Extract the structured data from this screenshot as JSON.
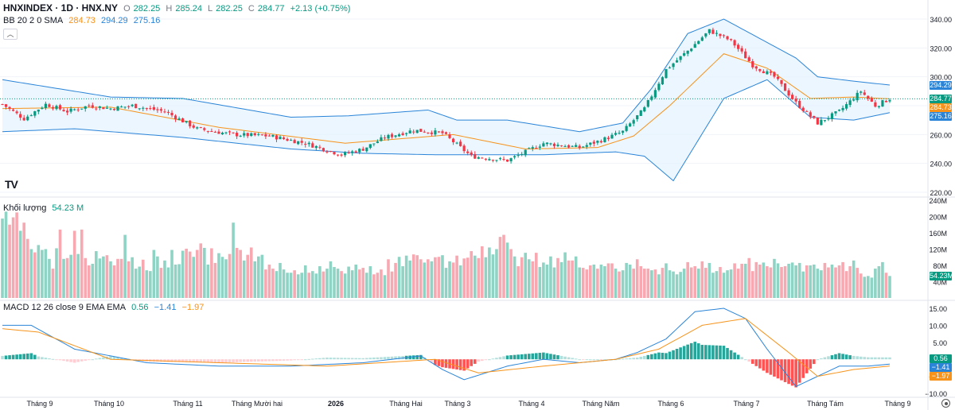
{
  "header": {
    "symbol": "HNXINDEX · 1D · HNX.NY",
    "o_label": "O",
    "o_value": "282.25",
    "h_label": "H",
    "h_value": "285.24",
    "l_label": "L",
    "l_value": "282.25",
    "c_label": "C",
    "c_value": "284.77",
    "change": "+2.13 (+0.75%)"
  },
  "bb_legend": {
    "label": "BB 20 2 0 SMA",
    "mid": "284.73",
    "upper": "294.29",
    "lower": "275.16"
  },
  "volume_legend": {
    "label": "Khối lượng",
    "value": "54.23 M"
  },
  "macd_legend": {
    "label": "MACD 12 26 close 9 EMA EMA",
    "hist": "0.56",
    "macd": "−1.41",
    "signal": "−1.97"
  },
  "logo": "TV",
  "badges": {
    "bb_upper": "294.29",
    "close": "284.77",
    "bb_mid": "284.73",
    "bb_lower": "275.16",
    "volume": "54.23M",
    "macd_hist": "0.56",
    "macd": "−1.41",
    "signal": "−1.97"
  },
  "price_axis_ticks": [
    "340.00",
    "320.00",
    "300.00",
    "280.00",
    "260.00",
    "240.00",
    "220.00"
  ],
  "volume_axis_ticks": [
    "240M",
    "200M",
    "160M",
    "120M",
    "80M",
    "40M"
  ],
  "macd_axis_ticks": [
    "15.00",
    "10.00",
    "5.00",
    "0.00",
    "−5.00",
    "−10.00"
  ],
  "time_axis": [
    "Tháng 9",
    "Tháng 10",
    "Tháng 11",
    "Tháng Mười hai",
    "2026",
    "Tháng Hai",
    "Tháng 3",
    "Tháng 4",
    "Tháng Năm",
    "Tháng 6",
    "Tháng 7",
    "Tháng Tám",
    "Tháng 9"
  ],
  "colors": {
    "up": "#089981",
    "down": "#f23645",
    "volume_up": "#8fd3c5",
    "volume_down": "#f7a8b1",
    "bb_band": "#2a84d8",
    "bb_fill": "#e3f2fd",
    "bb_mid": "#f7931a",
    "macd": "#2a84d8",
    "signal": "#f7931a",
    "close_line": "#089981"
  },
  "chart_data": [
    {
      "type": "candlestick",
      "title": "HNXINDEX · 1D · HNX.NY",
      "x_ticks": [
        "Tháng 9",
        "Tháng 10",
        "Tháng 11",
        "Tháng Mười hai",
        "2026",
        "Tháng Hai",
        "Tháng 3",
        "Tháng 4",
        "Tháng Năm",
        "Tháng 6",
        "Tháng 7",
        "Tháng Tám",
        "Tháng 9"
      ],
      "ylim": [
        220,
        340
      ],
      "close_anchor": {
        "x": [
          0,
          6,
          12,
          18,
          24,
          30,
          36,
          45,
          54,
          64,
          74,
          84,
          94,
          100,
          106,
          114,
          122,
          130,
          140,
          150,
          160,
          166,
          172,
          178,
          184,
          190,
          196,
          202,
          208,
          214,
          220,
          226,
          232,
          238,
          242,
          246
        ],
        "y": [
          281,
          271,
          281,
          276,
          280,
          278,
          280,
          276,
          264,
          260,
          259,
          254,
          246,
          250,
          258,
          263,
          261,
          245,
          242,
          254,
          251,
          256,
          262,
          278,
          305,
          318,
          332,
          325,
          308,
          300,
          282,
          268,
          276,
          290,
          280,
          284.77
        ]
      },
      "bb_upper": {
        "x": [
          0,
          30,
          50,
          80,
          96,
          118,
          126,
          140,
          160,
          172,
          180,
          190,
          200,
          220,
          226,
          236,
          246
        ],
        "y": [
          298,
          286,
          285,
          272,
          273,
          277,
          270,
          270,
          262,
          268,
          292,
          330,
          340,
          313,
          300,
          297,
          294.29
        ]
      },
      "bb_lower": {
        "x": [
          0,
          20,
          50,
          80,
          100,
          120,
          150,
          170,
          178,
          186,
          200,
          212,
          224,
          236,
          246
        ],
        "y": [
          262,
          264,
          258,
          250,
          247,
          246,
          246,
          248,
          245,
          228,
          285,
          298,
          272,
          270,
          275.16
        ]
      },
      "bb_mid": {
        "x": [
          0,
          30,
          60,
          95,
          125,
          145,
          165,
          175,
          185,
          200,
          212,
          224,
          236,
          246
        ],
        "y": [
          278,
          279,
          265,
          254,
          260,
          250,
          251,
          259,
          280,
          316,
          306,
          285,
          286,
          284.73
        ]
      }
    },
    {
      "type": "bar",
      "title": "Khối lượng",
      "ylim": [
        0,
        240
      ],
      "values": [
        195,
        212,
        180,
        198,
        210,
        165,
        185,
        145,
        120,
        112,
        130,
        118,
        120,
        96,
        72,
        122,
        168,
        96,
        98,
        106,
        165,
        108,
        168,
        98,
        80,
        84,
        115,
        97,
        102,
        105,
        90,
        80,
        96,
        96,
        155,
        90,
        100,
        72,
        77,
        94,
        68,
        66,
        118,
        102,
        74,
        92,
        75,
        118,
        82,
        83,
        116,
        121,
        114,
        101,
        118,
        134,
        123,
        82,
        122,
        86,
        110,
        101,
        95,
        108,
        185,
        123,
        118,
        92,
        106,
        124,
        90,
        102,
        106,
        70,
        82,
        72,
        66,
        86,
        70,
        62,
        62,
        68,
        58,
        62,
        80,
        62,
        66,
        60,
        78,
        65,
        72,
        90,
        76,
        72,
        66,
        60,
        77,
        68,
        82,
        70,
        74,
        62,
        78,
        58,
        62,
        70,
        56,
        95,
        65,
        86,
        101,
        78,
        104,
        92,
        107,
        105,
        95,
        87,
        95,
        90,
        100,
        101,
        105,
        74,
        90,
        87,
        104,
        80,
        97,
        99,
        115,
        104,
        98,
        127,
        100,
        124,
        107,
        120,
        150,
        155,
        136,
        120,
        102,
        78,
        100,
        111,
        95,
        90,
        111,
        76,
        87,
        82,
        102,
        75,
        98,
        88,
        112,
        92,
        92,
        102,
        75,
        74,
        70,
        80,
        82,
        72,
        82,
        78,
        85,
        85,
        72,
        65,
        68,
        86,
        82,
        72,
        95,
        78,
        72,
        72,
        68,
        70,
        58,
        74,
        85,
        68,
        65,
        58,
        64,
        72,
        88,
        75,
        78,
        72,
        90,
        74,
        86,
        62,
        66,
        76,
        62,
        68,
        70,
        85,
        72,
        84,
        84,
        98,
        66,
        88,
        82,
        87,
        78,
        75,
        96,
        85,
        76,
        78,
        84,
        87,
        80,
        86,
        65,
        80,
        80,
        82,
        72,
        68,
        86,
        75,
        82,
        75,
        80,
        88,
        66,
        78,
        92,
        74,
        60,
        52,
        54,
        50,
        72,
        78,
        88,
        62,
        54
      ]
    },
    {
      "type": "line",
      "title": "MACD 12 26 close 9 EMA EMA",
      "ylim": [
        -10,
        15
      ],
      "series": [
        {
          "name": "MACD",
          "x": [
            0,
            8,
            20,
            40,
            60,
            80,
            100,
            116,
            122,
            128,
            140,
            150,
            160,
            170,
            176,
            184,
            192,
            200,
            206,
            212,
            220,
            226,
            232,
            240,
            246
          ],
          "y": [
            10,
            10,
            3,
            -1,
            -2,
            -2,
            -1,
            1,
            -3,
            -6,
            -2,
            0,
            -1,
            0,
            2,
            6,
            14,
            15,
            12,
            3,
            -8,
            -5,
            -2,
            -2,
            -1.41
          ]
        },
        {
          "name": "Signal",
          "x": [
            0,
            10,
            30,
            60,
            90,
            120,
            132,
            150,
            170,
            182,
            194,
            206,
            218,
            226,
            236,
            246
          ],
          "y": [
            9,
            8,
            0,
            -1,
            -2,
            0,
            -4,
            -2,
            0,
            3,
            10,
            12,
            2,
            -5,
            -3,
            -1.97
          ]
        }
      ],
      "histogram_last": 0.56
    }
  ]
}
